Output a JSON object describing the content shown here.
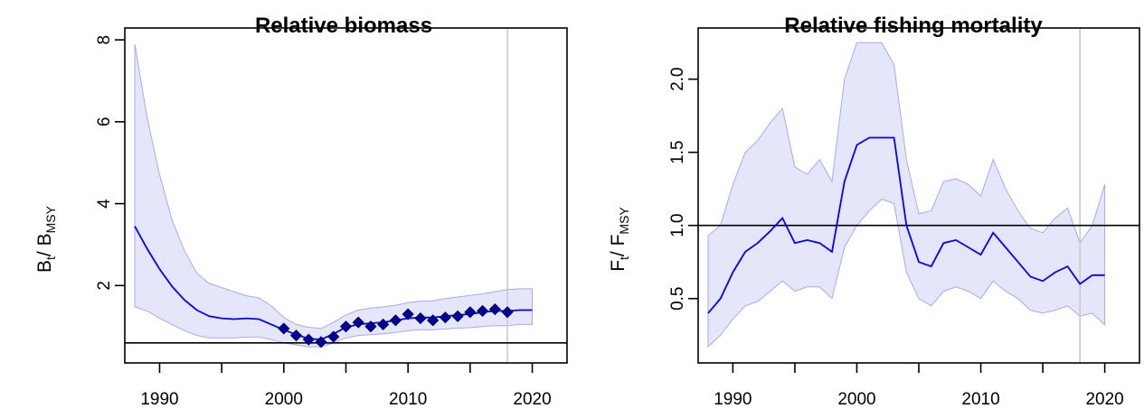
{
  "chart_data": [
    {
      "type": "line",
      "title": "Relative biomass",
      "ylabel": {
        "main1": "B",
        "sub1": "t",
        "mid": "/ B",
        "sub2": "MSY"
      },
      "xlim": [
        1987.2,
        2022.8
      ],
      "ylim": [
        0.11,
        8.29
      ],
      "xticks": [
        1990,
        1995,
        2000,
        2005,
        2010,
        2015,
        2020
      ],
      "xtick_labels": [
        "1990",
        "2000",
        "2010",
        "2020"
      ],
      "yticks": [
        2,
        4,
        6,
        8
      ],
      "ytick_labels": [
        "2",
        "4",
        "6",
        "8"
      ],
      "reference_line_y": 0.6,
      "vertical_line_x": 2018,
      "colors": {
        "line": "#0000ff",
        "band": "#e6e6fb",
        "band_edge": "#a8a8f4",
        "point": "#00009a",
        "ref": "#000000",
        "vline": "#c8c8c8"
      },
      "series": [
        {
          "role": "estimate",
          "x": [
            1988,
            1989,
            1990,
            1991,
            1992,
            1993,
            1994,
            1995,
            1996,
            1997,
            1998,
            1999,
            2000,
            2001,
            2002,
            2003,
            2004,
            2005,
            2006,
            2007,
            2008,
            2009,
            2010,
            2011,
            2012,
            2013,
            2014,
            2015,
            2016,
            2017,
            2018,
            2019,
            2020
          ],
          "y": [
            3.45,
            2.9,
            2.4,
            1.98,
            1.65,
            1.4,
            1.25,
            1.2,
            1.18,
            1.2,
            1.18,
            1.05,
            0.92,
            0.8,
            0.7,
            0.68,
            0.82,
            0.98,
            1.05,
            1.08,
            1.1,
            1.15,
            1.2,
            1.22,
            1.22,
            1.25,
            1.28,
            1.3,
            1.35,
            1.38,
            1.38,
            1.4,
            1.4
          ]
        },
        {
          "role": "upper",
          "x": [
            1988,
            1989,
            1990,
            1991,
            1992,
            1993,
            1994,
            1995,
            1996,
            1997,
            1998,
            1999,
            2000,
            2001,
            2002,
            2003,
            2004,
            2005,
            2006,
            2007,
            2008,
            2009,
            2010,
            2011,
            2012,
            2013,
            2014,
            2015,
            2016,
            2017,
            2018,
            2019,
            2020
          ],
          "y": [
            7.9,
            6.1,
            4.7,
            3.6,
            2.85,
            2.3,
            2.05,
            1.95,
            1.85,
            1.75,
            1.7,
            1.5,
            1.22,
            1.05,
            0.98,
            0.95,
            1.1,
            1.28,
            1.4,
            1.45,
            1.48,
            1.52,
            1.58,
            1.62,
            1.63,
            1.68,
            1.72,
            1.76,
            1.8,
            1.85,
            1.9,
            1.92,
            1.92
          ]
        },
        {
          "role": "lower",
          "x": [
            1988,
            1989,
            1990,
            1991,
            1992,
            1993,
            1994,
            1995,
            1996,
            1997,
            1998,
            1999,
            2000,
            2001,
            2002,
            2003,
            2004,
            2005,
            2006,
            2007,
            2008,
            2009,
            2010,
            2011,
            2012,
            2013,
            2014,
            2015,
            2016,
            2017,
            2018,
            2019,
            2020
          ],
          "y": [
            1.48,
            1.38,
            1.2,
            1.05,
            0.9,
            0.78,
            0.72,
            0.72,
            0.72,
            0.74,
            0.74,
            0.68,
            0.6,
            0.55,
            0.5,
            0.5,
            0.6,
            0.72,
            0.78,
            0.8,
            0.82,
            0.85,
            0.9,
            0.92,
            0.92,
            0.94,
            0.96,
            0.97,
            1.0,
            1.02,
            1.02,
            1.05,
            1.05
          ]
        },
        {
          "role": "observations",
          "x": [
            2000,
            2001,
            2002,
            2003,
            2004,
            2005,
            2006,
            2007,
            2008,
            2009,
            2010,
            2011,
            2012,
            2013,
            2014,
            2015,
            2016,
            2017,
            2018
          ],
          "y": [
            0.95,
            0.78,
            0.68,
            0.62,
            0.75,
            1.0,
            1.1,
            1.0,
            1.05,
            1.15,
            1.3,
            1.2,
            1.15,
            1.22,
            1.25,
            1.35,
            1.38,
            1.42,
            1.35
          ]
        }
      ]
    },
    {
      "type": "line",
      "title": "Relative fishing mortality",
      "ylabel": {
        "main1": "F",
        "sub1": "t",
        "mid": "/ F",
        "sub2": "MSY"
      },
      "xlim": [
        1987.2,
        2022.8
      ],
      "ylim": [
        0.06,
        2.35
      ],
      "xticks": [
        1990,
        1995,
        2000,
        2005,
        2010,
        2015,
        2020
      ],
      "xtick_labels": [
        "1990",
        "2000",
        "2010",
        "2020"
      ],
      "yticks": [
        0.5,
        1.0,
        1.5,
        2.0
      ],
      "ytick_labels": [
        "0.5",
        "1.0",
        "1.5",
        "2.0"
      ],
      "reference_line_y": 1.0,
      "vertical_line_x": 2018,
      "colors": {
        "line": "#0000ff",
        "band": "#e6e6fb",
        "band_edge": "#a8a8f4",
        "point": "#00009a",
        "ref": "#000000",
        "vline": "#c8c8c8"
      },
      "series": [
        {
          "role": "estimate",
          "x": [
            1988,
            1989,
            1990,
            1991,
            1992,
            1993,
            1994,
            1995,
            1996,
            1997,
            1998,
            1999,
            2000,
            2001,
            2002,
            2003,
            2004,
            2005,
            2006,
            2007,
            2008,
            2009,
            2010,
            2011,
            2012,
            2013,
            2014,
            2015,
            2016,
            2017,
            2018,
            2019,
            2020
          ],
          "y": [
            0.4,
            0.5,
            0.68,
            0.82,
            0.88,
            0.96,
            1.05,
            0.88,
            0.9,
            0.88,
            0.82,
            1.3,
            1.55,
            1.6,
            1.6,
            1.6,
            1.0,
            0.75,
            0.72,
            0.88,
            0.9,
            0.85,
            0.8,
            0.95,
            0.85,
            0.75,
            0.65,
            0.62,
            0.68,
            0.72,
            0.6,
            0.66,
            0.66
          ]
        },
        {
          "role": "upper",
          "x": [
            1988,
            1989,
            1990,
            1991,
            1992,
            1993,
            1994,
            1995,
            1996,
            1997,
            1998,
            1999,
            2000,
            2001,
            2002,
            2003,
            2004,
            2005,
            2006,
            2007,
            2008,
            2009,
            2010,
            2011,
            2012,
            2013,
            2014,
            2015,
            2016,
            2017,
            2018,
            2019,
            2020
          ],
          "y": [
            0.93,
            1.0,
            1.28,
            1.5,
            1.58,
            1.7,
            1.8,
            1.4,
            1.35,
            1.45,
            1.3,
            2.0,
            2.25,
            2.25,
            2.25,
            2.1,
            1.45,
            1.08,
            1.1,
            1.3,
            1.32,
            1.28,
            1.2,
            1.45,
            1.25,
            1.1,
            0.98,
            0.95,
            1.05,
            1.12,
            0.88,
            1.0,
            1.28
          ]
        },
        {
          "role": "lower",
          "x": [
            1988,
            1989,
            1990,
            1991,
            1992,
            1993,
            1994,
            1995,
            1996,
            1997,
            1998,
            1999,
            2000,
            2001,
            2002,
            2003,
            2004,
            2005,
            2006,
            2007,
            2008,
            2009,
            2010,
            2011,
            2012,
            2013,
            2014,
            2015,
            2016,
            2017,
            2018,
            2019,
            2020
          ],
          "y": [
            0.17,
            0.25,
            0.36,
            0.45,
            0.48,
            0.55,
            0.62,
            0.55,
            0.58,
            0.58,
            0.5,
            0.85,
            1.0,
            1.1,
            1.18,
            1.15,
            0.68,
            0.5,
            0.45,
            0.55,
            0.58,
            0.55,
            0.5,
            0.62,
            0.55,
            0.5,
            0.42,
            0.4,
            0.42,
            0.45,
            0.38,
            0.4,
            0.32
          ]
        }
      ]
    }
  ]
}
